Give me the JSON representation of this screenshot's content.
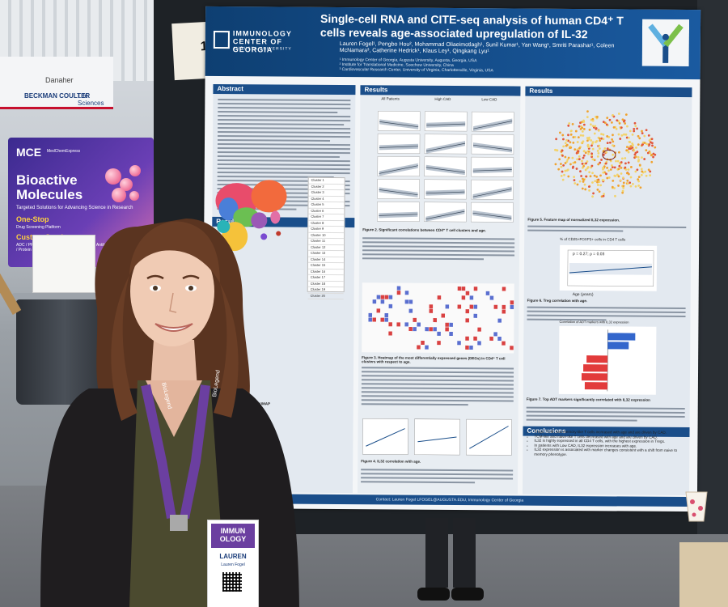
{
  "background": {
    "banner_brand": "Danaher",
    "banner_sub": "BECKMAN COULTER",
    "banner_sub2": "Life Sciences",
    "booth": {
      "brand": "MCE",
      "brand_sub": "MedChemExpress",
      "title_line1": "Bioactive",
      "title_line2": "Molecules",
      "subtitle": "Targeted Solutions for Advancing Science in Research",
      "one_stop": "One-Stop",
      "one_stop_desc": "Drug Screening Platform",
      "custom": "Custom Services",
      "custom_desc": "ADC / PROTAC / Peptide / Oligonucleotide / Antibody / Protein"
    },
    "board_note": "1"
  },
  "poster": {
    "logo_line1": "IMMUNOLOGY",
    "logo_line2": "CENTER OF GEORGIA",
    "logo_line3": "AUGUSTA UNIVERSITY",
    "title": "Single-cell RNA and CITE-seq analysis of human CD4⁺ T cells reveals age-associated upregulation of IL-32",
    "authors": "Lauren Fogel¹, Pengbo Hou², Mohammad Oliaeimotlagh¹, Sunil Kumar¹, Yan Wang¹, Smriti Parashar¹, Coleen McNamara³, Catherine Hedrick¹, Klaus Ley¹, Qingkang Lyu¹",
    "affiliations": [
      "¹ Immunology Center of Georgia, Augusta University, Augusta, Georgia, USA",
      "² Institute for Translational Medicine, Soochow University, China",
      "³ Cardiovascular Research Center, University of Virginia, Charlottesville, Virginia, USA"
    ],
    "sections": {
      "abstract": "Abstract",
      "results_1": "Results",
      "results_2": "Results",
      "results_3": "Results",
      "conclusions": "Conclusions"
    },
    "figure_captions": {
      "fig1": "Figure 1. UMAP",
      "fig2": "Figure 2. Significant correlations between CD4⁺ T cell clusters and age.",
      "fig3": "Figure 3. Heatmap of the most differentially expressed genes (DEGs) in CD4⁺ T cell clusters with respect to age.",
      "fig4": "Figure 4. IL32 correlation with age.",
      "fig5": "Figure 5. Feature map of normalized IL32 expression.",
      "fig6": "Figure 6. Treg correlation with age.",
      "fig7": "Figure 7. Top ADT markers significantly correlated with IL32 expression"
    },
    "panel_labels": {
      "all": "All Patients",
      "high": "High CAD",
      "low": "Low CAD",
      "treg_title": "% of CD25+FOXP3+ cells in CD4 T cells",
      "treg_stats": "p = 0.27;  ρ = 0.03",
      "treg_xlabel": "Age (years)",
      "bar_title": "Correlation of ADT markers with IL32 expression"
    },
    "conclusions": [
      "Tregs, TCM, and memory-like T cells increased with age and are driven by CAD.",
      "TCM-like and naive-like T cells decreased with age and are driven by CAD.",
      "IL32 is highly expressed in all CD4 T cells, with the highest expression in Tregs.",
      "In patients with Low CAD, IL32 expression increases with age.",
      "IL32 expression is associated with marker changes consistent with a shift from naive to memory phenotype."
    ],
    "footer": "Contact: Lauren Fogel LFOGEL@AUGUSTA.EDU, Immunology Center of Georgia",
    "cluster_legend": [
      "Cluster 1",
      "Cluster 2",
      "Cluster 3",
      "Cluster 4",
      "Cluster 5",
      "Cluster 6",
      "Cluster 7",
      "Cluster 8",
      "Cluster 9",
      "Cluster 10",
      "Cluster 11",
      "Cluster 12",
      "Cluster 13",
      "Cluster 14",
      "Cluster 15",
      "Cluster 16",
      "Cluster 17",
      "Cluster 18",
      "Cluster 19",
      "Cluster 20"
    ]
  },
  "badge": {
    "event_line1": "IMMUN",
    "event_line2": "OLOGY",
    "name": "LAUREN",
    "full_name": "Lauren Fogel",
    "lanyard_text": "BioLegend"
  },
  "colors": {
    "poster_blue": "#1a4e8a",
    "lanyard": "#6b3fa0",
    "shirt": "#4b4a2f"
  }
}
